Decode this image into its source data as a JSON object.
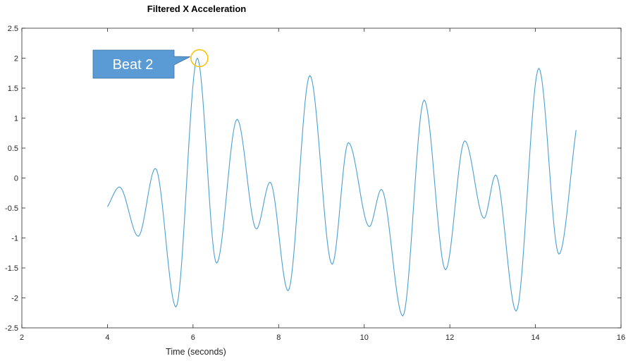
{
  "chart_data": {
    "type": "line",
    "title": "Filtered X Acceleration",
    "xlabel": "Time (seconds)",
    "ylabel": "",
    "xlim": [
      2,
      16
    ],
    "ylim": [
      -2.5,
      2.5
    ],
    "xticks": [
      2,
      4,
      6,
      8,
      10,
      12,
      14,
      16
    ],
    "yticks": [
      -2.5,
      -2,
      -1.5,
      -1,
      -0.5,
      0,
      0.5,
      1,
      1.5,
      2,
      2.5
    ],
    "grid": false,
    "series": [
      {
        "color": "#4a9fd4",
        "x": [
          4.0,
          4.28,
          4.72,
          5.12,
          5.6,
          6.1,
          6.55,
          7.03,
          7.48,
          7.8,
          8.22,
          8.73,
          9.25,
          9.63,
          10.12,
          10.4,
          10.9,
          11.4,
          11.9,
          12.35,
          12.8,
          13.07,
          13.55,
          14.08,
          14.55,
          14.95
        ],
        "y": [
          -0.48,
          -0.15,
          -0.97,
          0.16,
          -2.15,
          2.0,
          -1.42,
          0.98,
          -0.85,
          -0.07,
          -1.88,
          1.71,
          -1.44,
          0.59,
          -0.81,
          -0.19,
          -2.3,
          1.3,
          -1.53,
          0.62,
          -0.67,
          0.05,
          -2.22,
          1.83,
          -1.27,
          0.8
        ]
      }
    ],
    "annotations": [
      {
        "text": "Beat 2",
        "x": 6.0,
        "y": 2.0,
        "fill": "#5b9bd5",
        "marker_color": "#ffc000"
      }
    ]
  }
}
